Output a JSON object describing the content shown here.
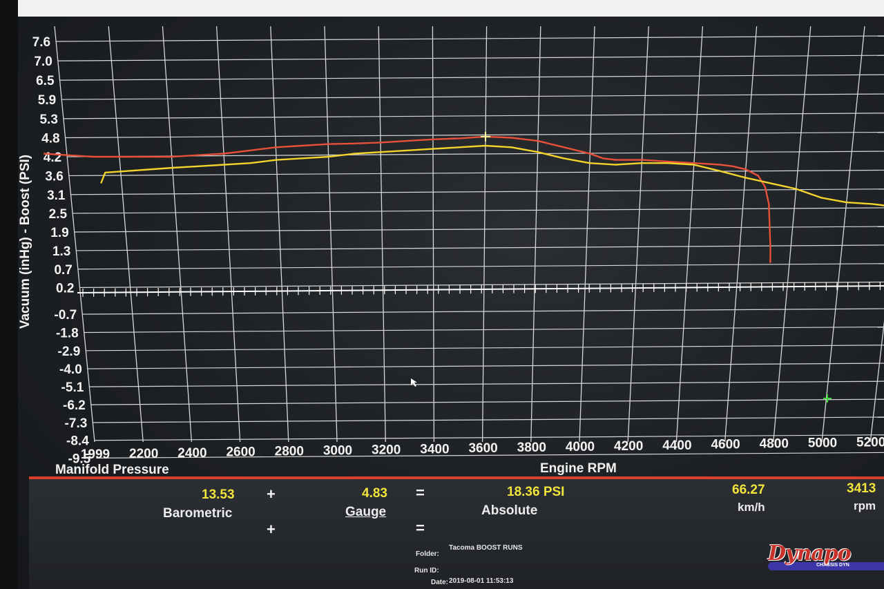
{
  "chart_data": {
    "type": "line",
    "title": "Manifold Pressure",
    "xlabel": "Engine RPM",
    "ylabel": "Vacuum (inHg) - Boost (PSI)",
    "x_ticks": [
      "1999",
      "2200",
      "2400",
      "2600",
      "2800",
      "3000",
      "3200",
      "3400",
      "3600",
      "3800",
      "4000",
      "4200",
      "4400",
      "4600",
      "4800",
      "5000",
      "5200"
    ],
    "y_ticks": [
      "7.6",
      "7.0",
      "6.5",
      "5.9",
      "5.3",
      "4.8",
      "4.2",
      "3.6",
      "3.1",
      "2.5",
      "1.9",
      "1.3",
      "0.7",
      "0.2",
      "-0.7",
      "-1.8",
      "-2.9",
      "-4.0",
      "-5.1",
      "-6.2",
      "-7.3",
      "-8.4",
      "-9.5"
    ],
    "xlim": [
      1999,
      5200
    ],
    "grid": true,
    "series": [
      {
        "color": "#e8503a",
        "x": [
          1910,
          2000,
          2100,
          2200,
          2300,
          2400,
          2500,
          2600,
          2700,
          2800,
          2900,
          3000,
          3100,
          3200,
          3300,
          3400,
          3500,
          3600,
          3700,
          3800,
          3850,
          3900,
          4000,
          4100,
          4200,
          4300,
          4350,
          4400,
          4450,
          4480,
          4500,
          4510,
          4520,
          4525
        ],
        "y": [
          4.3,
          4.25,
          4.2,
          4.2,
          4.25,
          4.3,
          4.4,
          4.5,
          4.55,
          4.6,
          4.62,
          4.65,
          4.7,
          4.75,
          4.78,
          4.83,
          4.8,
          4.7,
          4.5,
          4.3,
          4.15,
          4.1,
          4.1,
          4.05,
          4.0,
          3.95,
          3.9,
          3.8,
          3.6,
          3.3,
          2.8,
          2.1,
          1.4,
          0.9
        ]
      },
      {
        "color": "#f2d42c",
        "x": [
          2120,
          2140,
          2200,
          2300,
          2400,
          2500,
          2600,
          2700,
          2800,
          2900,
          3000,
          3100,
          3200,
          3300,
          3400,
          3500,
          3600,
          3700,
          3800,
          3900,
          4000,
          4100,
          4200,
          4300,
          4400,
          4500,
          4600,
          4700,
          4800,
          4900,
          5000,
          5100,
          5200,
          5300
        ],
        "y": [
          3.4,
          3.7,
          3.85,
          3.9,
          3.95,
          4.0,
          4.1,
          4.15,
          4.2,
          4.3,
          4.35,
          4.4,
          4.45,
          4.5,
          4.55,
          4.5,
          4.35,
          4.15,
          4.0,
          3.95,
          4.0,
          4.0,
          3.95,
          3.75,
          3.55,
          3.4,
          3.25,
          3.0,
          2.85,
          2.8,
          2.7,
          2.6,
          2.55,
          2.5
        ]
      }
    ],
    "cursor_point": {
      "x": 3400,
      "y": 4.83
    }
  },
  "header": {
    "title": "Manifold Pressure",
    "x_title": "Engine RPM"
  },
  "readout": {
    "barometric_value": "13.53",
    "barometric_label": "Barometric",
    "plus": "+",
    "gauge_value": "4.83",
    "gauge_label": "Gauge",
    "equals": "=",
    "absolute_value": "18.36 PSI",
    "absolute_label": "Absolute",
    "speed_value": "66.27",
    "speed_unit": "km/h",
    "rpm_value": "3413",
    "rpm_unit": "rpm"
  },
  "footer": {
    "folder_label": "Folder:",
    "folder_value": "Tacoma BOOST RUNS",
    "run_id_label": "Run ID:",
    "date_label": "Date:",
    "date_value": "2019-08-01 11:53:13"
  },
  "logo": {
    "text": "Dynapo",
    "subtext": "CHASSIS DYN"
  },
  "colors": {
    "grid": "#d8d8d8",
    "accent_red": "#d8402c",
    "readout_yellow": "#f1e43a"
  }
}
